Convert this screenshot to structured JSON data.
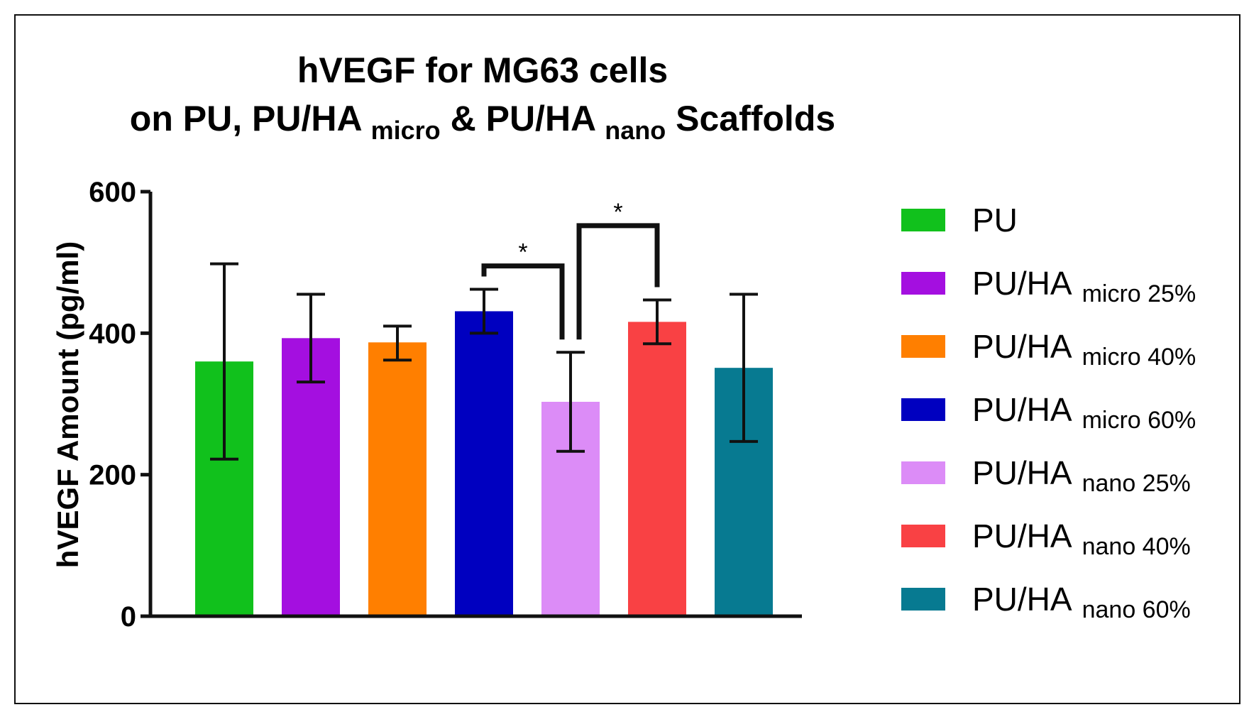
{
  "chart_data": {
    "type": "bar",
    "title_line1": "hVEGF for MG63 cells",
    "title_line2": {
      "part1": "on PU, PU/HA",
      "sub1": "micro",
      "part2": "& PU/HA",
      "sub2": "nano",
      "part3": "Scaffolds"
    },
    "xlabel": "",
    "ylabel": "hVEGF Amount (pg/ml)",
    "ylim": [
      0,
      600
    ],
    "yticks": [
      "0",
      "200",
      "400",
      "600"
    ],
    "yticks_values": [
      0,
      200,
      400,
      600
    ],
    "grid": false,
    "legend_position": "right",
    "series": [
      {
        "key": "pu",
        "name": "PU",
        "sub": "",
        "value": 360,
        "err_low": 222,
        "err_high": 498,
        "color": "#11c11c"
      },
      {
        "key": "micro-25",
        "name": "PU/HA",
        "sub": "micro 25%",
        "value": 393,
        "err_low": 331,
        "err_high": 455,
        "color": "#a40fe0"
      },
      {
        "key": "micro-40",
        "name": "PU/HA",
        "sub": "micro 40%",
        "value": 387,
        "err_low": 362,
        "err_high": 410,
        "color": "#ff7f00"
      },
      {
        "key": "micro-60",
        "name": "PU/HA",
        "sub": "micro 60%",
        "value": 431,
        "err_low": 400,
        "err_high": 462,
        "color": "#0000c0"
      },
      {
        "key": "nano-25",
        "name": "PU/HA",
        "sub": "nano 25%",
        "value": 303,
        "err_low": 233,
        "err_high": 373,
        "color": "#dc8cf7"
      },
      {
        "key": "nano-40",
        "name": "PU/HA",
        "sub": "nano 40%",
        "value": 416,
        "err_low": 385,
        "err_high": 447,
        "color": "#f94144"
      },
      {
        "key": "nano-60",
        "name": "PU/HA",
        "sub": "nano 60%",
        "value": 351,
        "err_low": 247,
        "err_high": 455,
        "color": "#077a91"
      }
    ],
    "significance": [
      {
        "from": 3,
        "to": 4,
        "level": 495,
        "label": "*"
      },
      {
        "from": 4,
        "to": 5,
        "level": 552,
        "label": "*"
      }
    ]
  }
}
